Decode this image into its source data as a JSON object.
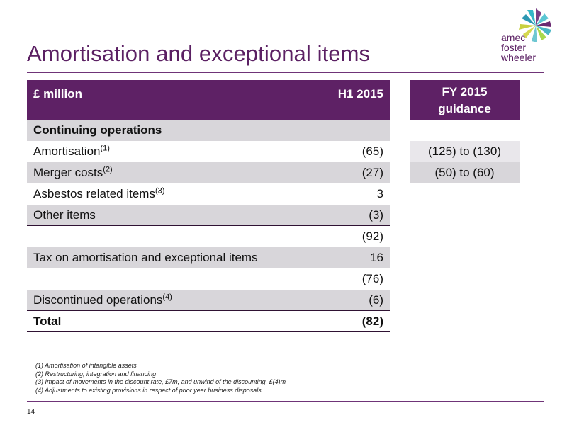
{
  "title": "Amortisation and exceptional items",
  "logo": {
    "line1": "amec",
    "line2": "foster",
    "line3": "wheeler",
    "icon": "amec-foster-wheeler-logo-icon"
  },
  "colors": {
    "brand_purple": "#5e2165",
    "row_shade": "#d8d6da",
    "guidance_light": "#e9e7eb"
  },
  "table": {
    "header": {
      "label": "£ million",
      "value": "H1 2015"
    },
    "section_heading": "Continuing operations",
    "rows": [
      {
        "label": "Amortisation",
        "sup": "(1)",
        "value": "(65)"
      },
      {
        "label": "Merger costs",
        "sup": "(2)",
        "value": "(27)"
      },
      {
        "label": "Asbestos related items",
        "sup": "(3)",
        "value": "3"
      },
      {
        "label": "Other items",
        "sup": "",
        "value": "(3)"
      },
      {
        "label": "",
        "sup": "",
        "value": "(92)"
      },
      {
        "label": "Tax on amortisation and exceptional items",
        "sup": "",
        "value": "16"
      },
      {
        "label": "",
        "sup": "",
        "value": "(76)"
      },
      {
        "label": "Discontinued operations",
        "sup": "(4)",
        "value": "(6)"
      },
      {
        "label": "Total",
        "sup": "",
        "value": "(82)"
      }
    ]
  },
  "guidance": {
    "header_line1": "FY 2015",
    "header_line2": "guidance",
    "rows": [
      {
        "value": "(125) to (130)"
      },
      {
        "value": "(50) to (60)"
      }
    ]
  },
  "footnotes": [
    "(1)  Amortisation of intangible assets",
    "(2)  Restructuring, integration and financing",
    "(3)  Impact of movements in the discount rate, £7m, and unwind of the discounting, £(4)m",
    "(4)  Adjustments to existing provisions in respect of prior year business disposals"
  ],
  "page_number": "14"
}
